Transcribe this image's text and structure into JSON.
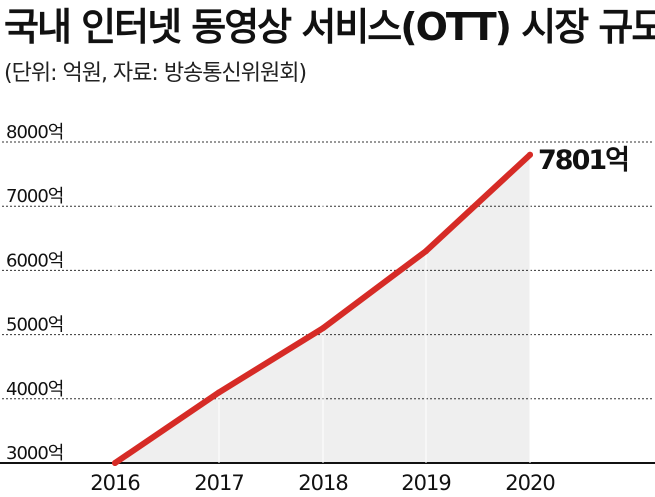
{
  "title": "국내 인터넷 동영상 서비스(OTT) 시장 규모",
  "subtitle": "(단위: 억원, 자료: 방송통신위원회)",
  "colors": {
    "line": "#d62b26",
    "area": "#efefef",
    "grid": "#333333",
    "axis": "#111111"
  },
  "chart_data": {
    "type": "area",
    "title": "국내 인터넷 동영상 서비스(OTT) 시장 규모",
    "subtitle": "(단위: 억원, 자료: 방송통신위원회)",
    "x": [
      "2016",
      "2017",
      "2018",
      "2019",
      "2020"
    ],
    "series": [
      {
        "values": [
          3000,
          4100,
          5100,
          6300,
          7801
        ]
      }
    ],
    "ylim": [
      3000,
      8000
    ],
    "yticks": [
      3000,
      4000,
      5000,
      6000,
      7000,
      8000
    ],
    "ytick_labels": [
      "3000억",
      "4000억",
      "5000억",
      "6000억",
      "7000억",
      "8000억"
    ],
    "annotation": "7801억",
    "grid": "horizontal dashed",
    "legend": "none"
  }
}
